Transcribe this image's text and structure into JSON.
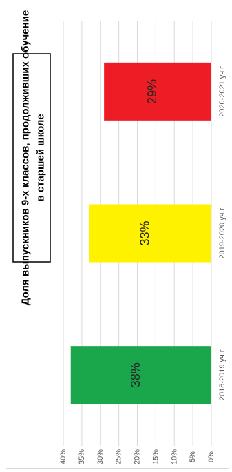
{
  "chart_data": {
    "type": "bar",
    "orientation": "horizontal",
    "title_lines": [
      "Доля выпускников  9-х классов, продолживших обучение",
      "в старшей школе"
    ],
    "categories": [
      "2018-2019 уч.г",
      "2019-2020 уч.г",
      "2020-2021 уч.г"
    ],
    "values": [
      38,
      33,
      29
    ],
    "data_labels": [
      "38%",
      "33%",
      "29%"
    ],
    "colors": [
      "#1aa64b",
      "#fff200",
      "#ee1c24"
    ],
    "value_ticks": [
      "0%",
      "5%",
      "10%",
      "15%",
      "20%",
      "25%",
      "30%",
      "35%",
      "40%"
    ],
    "value_axis_range": [
      0,
      40
    ],
    "grid": true,
    "legend": "none"
  }
}
